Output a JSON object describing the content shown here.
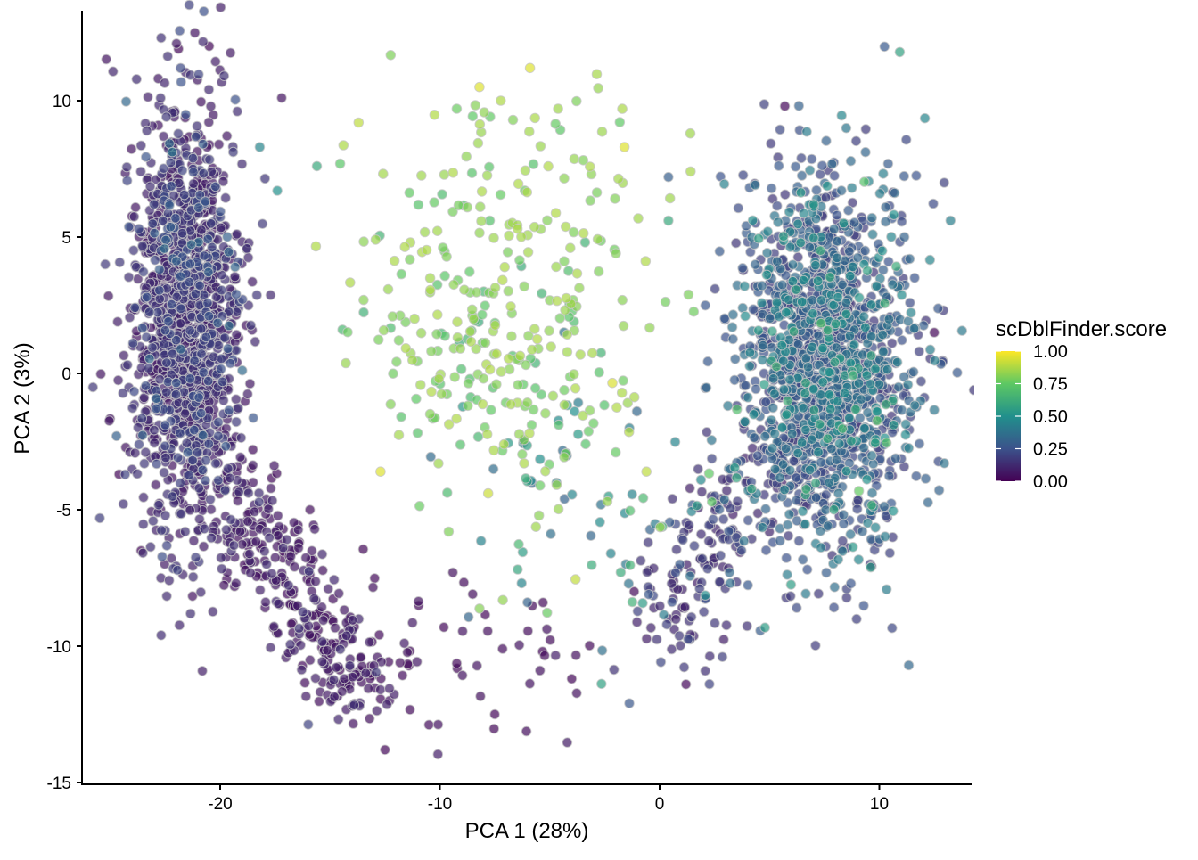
{
  "chart_data": {
    "type": "scatter",
    "title": "",
    "xlabel": "PCA 1 (28%)",
    "ylabel": "PCA 2 (3%)",
    "xlim": [
      -26.3,
      14.2
    ],
    "ylim": [
      -15.1,
      13.3
    ],
    "xticks": [
      -20,
      -10,
      0,
      10
    ],
    "xtick_labels": [
      "-20",
      "-10",
      "0",
      "10"
    ],
    "yticks": [
      10,
      5,
      0,
      -5,
      -10,
      -15
    ],
    "ytick_labels": [
      "10",
      "5",
      "0",
      "-5",
      "-10",
      "-15"
    ],
    "grid": false,
    "legend": {
      "title": "scDblFinder.score",
      "placement": "right",
      "colormap": "viridis",
      "range": [
        0,
        1
      ],
      "ticks": [
        1.0,
        0.75,
        0.5,
        0.25,
        0.0
      ],
      "labels": [
        "1.00",
        "0.75",
        "0.50",
        "0.25",
        "0.00"
      ]
    },
    "color_variable": "scDblFinder.score",
    "clusters": [
      {
        "name": "left-cluster",
        "kind": "gauss",
        "center": [
          -21.6,
          2.0
        ],
        "sd": [
          1.2,
          3.9
        ],
        "count": 1500,
        "score_mean": 0.05,
        "score_sd": 0.1
      },
      {
        "name": "left-tail",
        "kind": "segment",
        "from": [
          -19.5,
          -4.5
        ],
        "to": [
          -13.5,
          -12.0
        ],
        "width": 1.6,
        "count": 320,
        "score_mean": 0.03,
        "score_sd": 0.05
      },
      {
        "name": "right-cluster",
        "kind": "gauss",
        "center": [
          7.6,
          0.3
        ],
        "sd": [
          1.9,
          3.4
        ],
        "count": 1700,
        "score_mean": 0.15,
        "score_sd": 0.18
      },
      {
        "name": "right-tail",
        "kind": "segment",
        "from": [
          4.0,
          -4.0
        ],
        "to": [
          0.0,
          -10.0
        ],
        "width": 1.8,
        "count": 160,
        "score_mean": 0.08,
        "score_sd": 0.12
      },
      {
        "name": "middle-doublets",
        "kind": "gauss",
        "center": [
          -7.0,
          2.5
        ],
        "sd": [
          3.2,
          3.6
        ],
        "count": 320,
        "score_mean": 0.88,
        "score_sd": 0.1
      },
      {
        "name": "bottom-sparse",
        "kind": "gauss",
        "center": [
          -9.0,
          -10.0
        ],
        "sd": [
          3.0,
          1.8
        ],
        "count": 60,
        "score_mean": 0.02,
        "score_sd": 0.03
      },
      {
        "name": "center-scatter",
        "kind": "gauss",
        "center": [
          -3.0,
          -4.5
        ],
        "sd": [
          3.0,
          2.5
        ],
        "count": 70,
        "score_mean": 0.3,
        "score_sd": 0.25
      }
    ],
    "points": [
      {
        "x": -20.5,
        "y": 12.0,
        "score": 0.02
      },
      {
        "x": -21.9,
        "y": 11.9,
        "score": 0.02
      },
      {
        "x": -17.2,
        "y": 10.1,
        "score": 0.05
      },
      {
        "x": -5.9,
        "y": 11.2,
        "score": 0.95
      },
      {
        "x": -8.2,
        "y": 10.5,
        "score": 0.95
      },
      {
        "x": -13.7,
        "y": 9.2,
        "score": 0.9
      },
      {
        "x": -15.6,
        "y": 7.6,
        "score": 0.6
      },
      {
        "x": 1.4,
        "y": 8.8,
        "score": 0.85
      },
      {
        "x": -1.6,
        "y": 8.3,
        "score": 0.95
      },
      {
        "x": 5.7,
        "y": 9.8,
        "score": 0.02
      },
      {
        "x": 12.5,
        "y": 1.5,
        "score": 0.02
      },
      {
        "x": -24.6,
        "y": -3.7,
        "score": 0.02
      },
      {
        "x": -23.6,
        "y": -6.5,
        "score": 0.02
      },
      {
        "x": -12.5,
        "y": -13.8,
        "score": 0.02
      },
      {
        "x": -7.5,
        "y": -12.5,
        "score": 0.02
      },
      {
        "x": -4.0,
        "y": -11.2,
        "score": 0.02
      },
      {
        "x": 1.2,
        "y": -11.4,
        "score": 0.02
      },
      {
        "x": -7.8,
        "y": -4.4,
        "score": 0.92
      },
      {
        "x": -12.7,
        "y": -3.6,
        "score": 0.95
      },
      {
        "x": -0.6,
        "y": -3.6,
        "score": 0.9
      },
      {
        "x": -9.6,
        "y": -5.8,
        "score": 0.8
      },
      {
        "x": 0.4,
        "y": 7.2,
        "score": 0.3
      },
      {
        "x": 0.4,
        "y": 5.6,
        "score": 0.6
      },
      {
        "x": -17.4,
        "y": 6.7,
        "score": 0.5
      },
      {
        "x": -18.2,
        "y": 8.3,
        "score": 0.45
      }
    ]
  }
}
